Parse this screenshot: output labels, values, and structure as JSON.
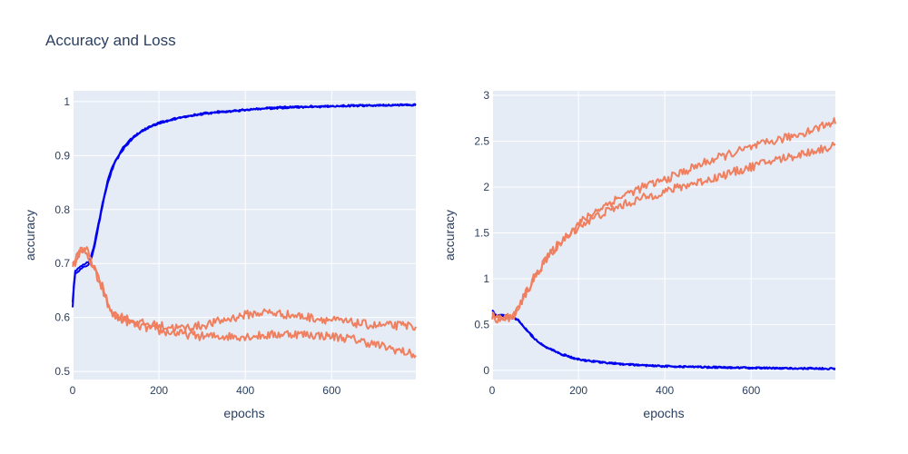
{
  "title": "Accuracy and Loss",
  "colors": {
    "plot_bg": "#e5ecf6",
    "grid": "#ffffff",
    "train": "#0000ee",
    "val": "#ef7f5e"
  },
  "chart_data": [
    {
      "type": "line",
      "xlabel": "epochs",
      "ylabel": "accuracy",
      "xlim": [
        0,
        795
      ],
      "ylim": [
        0.485,
        1.02
      ],
      "xticks": [
        0,
        200,
        400,
        600
      ],
      "yticks": [
        0.5,
        0.6,
        0.7,
        0.8,
        0.9,
        1
      ],
      "ytick_labels": [
        "0.5",
        "0.6",
        "0.7",
        "0.8",
        "0.9",
        "1"
      ],
      "grid": true,
      "series": [
        {
          "color_key": "train",
          "x": [
            0,
            5,
            10,
            20,
            30,
            40,
            50,
            60,
            70,
            80,
            90,
            100,
            120,
            140,
            160,
            180,
            200,
            250,
            300,
            350,
            400,
            450,
            500,
            600,
            700,
            795
          ],
          "values": [
            0.62,
            0.68,
            0.685,
            0.69,
            0.695,
            0.7,
            0.73,
            0.77,
            0.81,
            0.845,
            0.87,
            0.89,
            0.915,
            0.932,
            0.945,
            0.953,
            0.96,
            0.97,
            0.977,
            0.981,
            0.984,
            0.987,
            0.989,
            0.991,
            0.993,
            0.994
          ]
        },
        {
          "color_key": "train",
          "x": [
            0,
            5,
            10,
            20,
            30,
            40,
            50,
            60,
            70,
            80,
            90,
            100,
            120,
            140,
            160,
            180,
            200,
            250,
            300,
            350,
            400,
            450,
            500,
            600,
            700,
            795
          ],
          "values": [
            0.63,
            0.685,
            0.69,
            0.695,
            0.7,
            0.705,
            0.735,
            0.775,
            0.815,
            0.85,
            0.875,
            0.893,
            0.918,
            0.934,
            0.946,
            0.954,
            0.961,
            0.971,
            0.978,
            0.982,
            0.985,
            0.988,
            0.99,
            0.992,
            0.993,
            0.994
          ]
        },
        {
          "color_key": "val",
          "x": [
            0,
            10,
            20,
            30,
            40,
            50,
            60,
            70,
            80,
            90,
            100,
            120,
            150,
            200,
            250,
            300,
            350,
            400,
            450,
            500,
            550,
            600,
            650,
            700,
            750,
            795
          ],
          "values": [
            0.69,
            0.71,
            0.725,
            0.73,
            0.71,
            0.69,
            0.67,
            0.65,
            0.625,
            0.61,
            0.6,
            0.595,
            0.585,
            0.575,
            0.57,
            0.565,
            0.565,
            0.565,
            0.567,
            0.57,
            0.568,
            0.565,
            0.56,
            0.55,
            0.54,
            0.53
          ]
        },
        {
          "color_key": "val",
          "x": [
            0,
            10,
            20,
            30,
            40,
            50,
            60,
            70,
            80,
            90,
            100,
            120,
            150,
            200,
            250,
            300,
            350,
            400,
            450,
            500,
            550,
            600,
            650,
            700,
            750,
            795
          ],
          "values": [
            0.695,
            0.715,
            0.725,
            0.72,
            0.705,
            0.69,
            0.67,
            0.655,
            0.63,
            0.615,
            0.605,
            0.6,
            0.59,
            0.585,
            0.58,
            0.585,
            0.595,
            0.605,
            0.61,
            0.605,
            0.6,
            0.595,
            0.59,
            0.585,
            0.585,
            0.585
          ]
        }
      ]
    },
    {
      "type": "line",
      "xlabel": "epochs",
      "ylabel": "accuracy",
      "xlim": [
        0,
        795
      ],
      "ylim": [
        -0.1,
        3.05
      ],
      "xticks": [
        0,
        200,
        400,
        600
      ],
      "yticks": [
        0,
        0.5,
        1,
        1.5,
        2,
        2.5,
        3
      ],
      "ytick_labels": [
        "0",
        "0.5",
        "1",
        "1.5",
        "2",
        "2.5",
        "3"
      ],
      "grid": true,
      "series": [
        {
          "color_key": "train",
          "x": [
            0,
            10,
            20,
            30,
            40,
            50,
            60,
            70,
            80,
            90,
            100,
            120,
            140,
            160,
            180,
            200,
            250,
            300,
            350,
            400,
            500,
            600,
            700,
            795
          ],
          "values": [
            0.65,
            0.6,
            0.6,
            0.595,
            0.59,
            0.58,
            0.55,
            0.5,
            0.44,
            0.39,
            0.34,
            0.27,
            0.22,
            0.18,
            0.15,
            0.12,
            0.09,
            0.07,
            0.055,
            0.045,
            0.035,
            0.028,
            0.022,
            0.02
          ]
        },
        {
          "color_key": "train",
          "x": [
            0,
            10,
            20,
            30,
            40,
            50,
            60,
            70,
            80,
            90,
            100,
            120,
            140,
            160,
            180,
            200,
            250,
            300,
            350,
            400,
            500,
            600,
            700,
            795
          ],
          "values": [
            0.62,
            0.59,
            0.59,
            0.585,
            0.58,
            0.575,
            0.545,
            0.495,
            0.435,
            0.385,
            0.335,
            0.265,
            0.215,
            0.175,
            0.145,
            0.118,
            0.088,
            0.068,
            0.054,
            0.044,
            0.034,
            0.027,
            0.021,
            0.019
          ]
        },
        {
          "color_key": "val",
          "x": [
            0,
            10,
            20,
            30,
            40,
            50,
            60,
            70,
            80,
            90,
            100,
            120,
            150,
            200,
            250,
            300,
            350,
            400,
            450,
            500,
            550,
            600,
            650,
            700,
            750,
            795
          ],
          "values": [
            0.6,
            0.58,
            0.57,
            0.57,
            0.58,
            0.6,
            0.67,
            0.77,
            0.86,
            0.95,
            1.04,
            1.18,
            1.36,
            1.6,
            1.77,
            1.9,
            2.0,
            2.08,
            2.18,
            2.28,
            2.36,
            2.43,
            2.5,
            2.56,
            2.64,
            2.72
          ]
        },
        {
          "color_key": "val",
          "x": [
            0,
            10,
            20,
            30,
            40,
            50,
            60,
            70,
            80,
            90,
            100,
            120,
            150,
            200,
            250,
            300,
            350,
            400,
            450,
            500,
            550,
            600,
            650,
            700,
            750,
            795
          ],
          "values": [
            0.59,
            0.57,
            0.56,
            0.56,
            0.575,
            0.595,
            0.66,
            0.76,
            0.85,
            0.94,
            1.03,
            1.17,
            1.35,
            1.57,
            1.7,
            1.8,
            1.88,
            1.95,
            2.02,
            2.08,
            2.15,
            2.22,
            2.29,
            2.34,
            2.4,
            2.45
          ]
        }
      ]
    }
  ]
}
